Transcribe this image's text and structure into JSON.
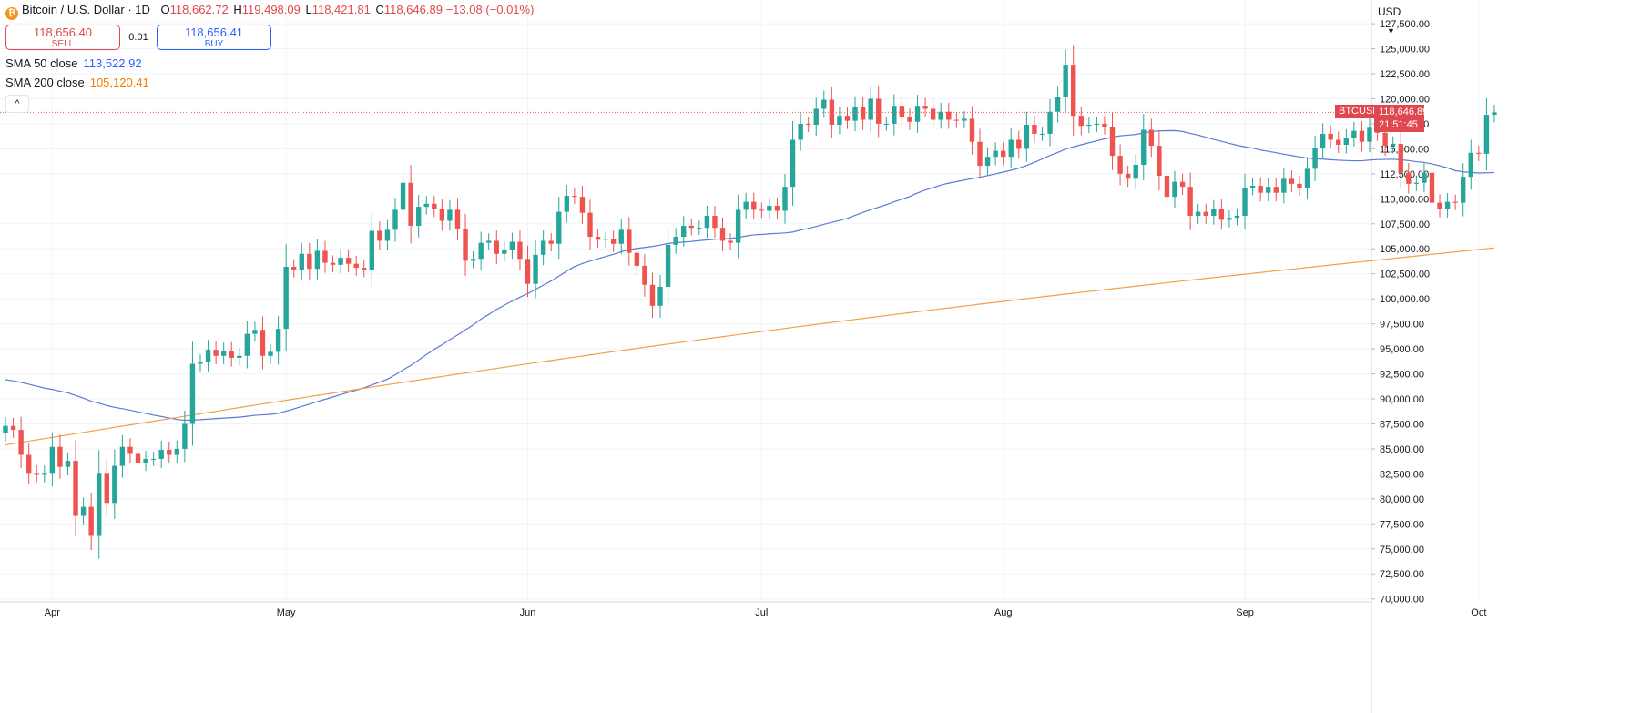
{
  "legend": {
    "symbol_icon": "bitcoin-icon",
    "title": "Bitcoin / U.S. Dollar · 1D",
    "open_label": "O",
    "open": "118,662.72",
    "high_label": "H",
    "high": "119,498.09",
    "low_label": "L",
    "low": "118,421.81",
    "close_label": "C",
    "close": "118,646.89",
    "change": "−13.08 (−0.01%)"
  },
  "trade": {
    "sell_price": "118,656.40",
    "sell_label": "SELL",
    "spread": "0.01",
    "buy_price": "118,656.41",
    "buy_label": "BUY"
  },
  "indicators": [
    {
      "label": "SMA 50 close",
      "value": "113,522.92",
      "color": "#2962ff"
    },
    {
      "label": "SMA 200 close",
      "value": "105,120.41",
      "color": "#f57c00"
    }
  ],
  "collapse_icon": "chevron-up-icon",
  "currency": "USD",
  "currency_icon": "chevron-down-icon",
  "price_label": {
    "symbol": "BTCUSD",
    "price": "118,646.89",
    "countdown": "21:51:45"
  },
  "colors": {
    "up": "#26a69a",
    "down": "#ef5350",
    "sma50": "#5b7ad8",
    "sma200": "#f0a04b",
    "grid": "#f0f3fa",
    "axis_text": "#131722"
  },
  "chart_data": {
    "type": "candlestick",
    "yticks": [
      "70,000.00",
      "72,500.00",
      "75,000.00",
      "77,500.00",
      "80,000.00",
      "82,500.00",
      "85,000.00",
      "87,500.00",
      "90,000.00",
      "92,500.00",
      "95,000.00",
      "97,500.00",
      "100,000.00",
      "102,500.00",
      "105,000.00",
      "107,500.00",
      "110,000.00",
      "112,500.00",
      "115,000.00",
      "117,500.00",
      "120,000.00",
      "122,500.00",
      "125,000.00",
      "127,500.00"
    ],
    "ylim": [
      69700,
      128600
    ],
    "month_labels": [
      {
        "label": "Apr",
        "date": "2025-04-01"
      },
      {
        "label": "May",
        "date": "2025-05-01"
      },
      {
        "label": "Jun",
        "date": "2025-06-01"
      },
      {
        "label": "Jul",
        "date": "2025-07-01"
      },
      {
        "label": "Aug",
        "date": "2025-08-01"
      },
      {
        "label": "Sep",
        "date": "2025-09-01"
      },
      {
        "label": "Oct",
        "date": "2025-10-01"
      }
    ],
    "first_date": "2025-03-26",
    "close": [
      87300,
      86900,
      84400,
      82600,
      82400,
      82600,
      85200,
      83200,
      83800,
      78300,
      79200,
      76300,
      82600,
      79600,
      83300,
      85200,
      84500,
      83600,
      84000,
      84000,
      84900,
      84400,
      85000,
      87500,
      93500,
      93700,
      94900,
      94300,
      94800,
      94100,
      94300,
      96500,
      96900,
      94300,
      94700,
      97000,
      103200,
      102900,
      104500,
      103000,
      104800,
      103600,
      103400,
      104100,
      103500,
      103100,
      102900,
      106800,
      105800,
      106900,
      108900,
      111600,
      107300,
      109200,
      109500,
      109000,
      107800,
      108900,
      107000,
      103800,
      104000,
      105600,
      105800,
      104500,
      104900,
      105700,
      104000,
      101500,
      104400,
      105800,
      105500,
      108700,
      110300,
      110200,
      108600,
      106200,
      105900,
      106000,
      105500,
      106900,
      104600,
      103300,
      101400,
      99300,
      101200,
      105400,
      106200,
      107300,
      107100,
      107100,
      108300,
      107100,
      105800,
      105600,
      108900,
      109700,
      108900,
      108800,
      109300,
      108800,
      111200,
      115900,
      117500,
      117400,
      119000,
      119900,
      117400,
      118300,
      117800,
      119200,
      117900,
      120000,
      117500,
      117500,
      119300,
      118200,
      117700,
      119300,
      119000,
      117900,
      118700,
      117900,
      117800,
      118000,
      115700,
      113300,
      114200,
      114800,
      114200,
      115900,
      115000,
      117400,
      116500,
      116500,
      118700,
      120200,
      123400,
      118300,
      117300,
      117400,
      117500,
      117200,
      114300,
      112500,
      112000,
      113400,
      116900,
      115300,
      112300,
      110200,
      111700,
      111200,
      108300,
      108700,
      108300,
      109000,
      107900,
      108100,
      108300,
      111100,
      111300,
      110600,
      111200,
      110600,
      112000,
      111500,
      111100,
      113000,
      115100,
      116500,
      115900,
      115400,
      116100,
      116800,
      115700,
      117100,
      116600,
      115300,
      115500,
      112600,
      111500,
      111600,
      112600,
      109600,
      109000,
      109700,
      109600,
      112200,
      114600,
      114500,
      118400,
      118646.89
    ],
    "candle_ohlc_note": "open of each candle equals prior close; high/low wicks estimated from chart",
    "sma50_note": "SMA 50 close line",
    "sma200_note": "SMA 200 close line",
    "last_price": 118646.89
  }
}
